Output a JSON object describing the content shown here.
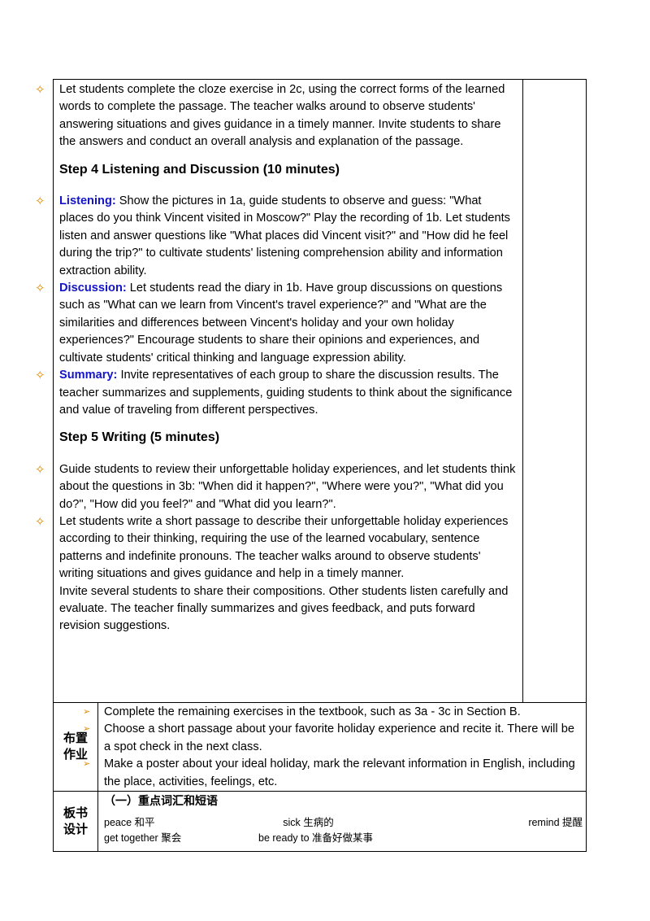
{
  "main_cell": {
    "p1": "Let students complete the cloze exercise in 2c, using the correct forms of the learned words to complete the passage. The teacher walks around to observe students' answering situations and gives guidance in a timely manner. Invite students to share the answers and conduct an overall analysis and explanation of the passage.",
    "step4_heading": "Step 4  Listening and Discussion (10 minutes)",
    "step4_items": [
      {
        "label": "Listening:",
        "text": "Show the pictures in 1a, guide students to observe and guess: \"What places do you think Vincent visited in Moscow?\" Play the recording of 1b. Let students listen and answer questions like \"What places did Vincent visit?\" and \"How did he feel during the trip?\" to cultivate students' listening comprehension ability and information extraction ability."
      },
      {
        "label": "Discussion:",
        "text": "Let students read the diary in 1b. Have group discussions on questions such as \"What can we learn from Vincent's travel experience?\" and \"What are the similarities and differences between Vincent's holiday and your own holiday experiences?\" Encourage students to share their opinions and experiences, and cultivate students' critical thinking and language expression ability."
      },
      {
        "label": "Summary:",
        "text": "Invite representatives of each group to share the discussion results. The teacher summarizes and supplements, guiding students to think about the significance and value of traveling from different perspectives."
      }
    ],
    "step5_heading": "Step 5  Writing (5 minutes)",
    "step5_items": [
      "Guide students to review their unforgettable holiday experiences, and let students think about the questions in 3b: \"When did it happen?\", \"Where were you?\", \"What did you do?\", \"How did you feel?\" and \"What did you learn?\".",
      "Let students write a short passage to describe their unforgettable holiday experiences according to their thinking, requiring the use of the learned vocabulary, sentence patterns and indefinite pronouns. The teacher walks around to observe students' writing situations and gives guidance and help in a timely manner.",
      "Invite several students to share their compositions. Other students listen carefully and evaluate. The teacher finally summarizes and gives feedback, and puts forward revision suggestions."
    ]
  },
  "homework": {
    "label": "布置作业",
    "items": [
      "Complete the remaining exercises in the textbook, such as 3a - 3c in Section B.",
      "Choose a short passage about your favorite holiday experience and recite it. There will be a spot check in the next class.",
      "Make a poster about your ideal holiday, mark the relevant information in English, including the place, activities, feelings, etc."
    ]
  },
  "board": {
    "label": "板书设计",
    "heading": "（一）重点词汇和短语",
    "rows": [
      [
        "peace 和平",
        "sick 生病的",
        "remind 提醒"
      ],
      [
        "get together 聚会",
        "be ready to 准备好做某事"
      ]
    ]
  }
}
